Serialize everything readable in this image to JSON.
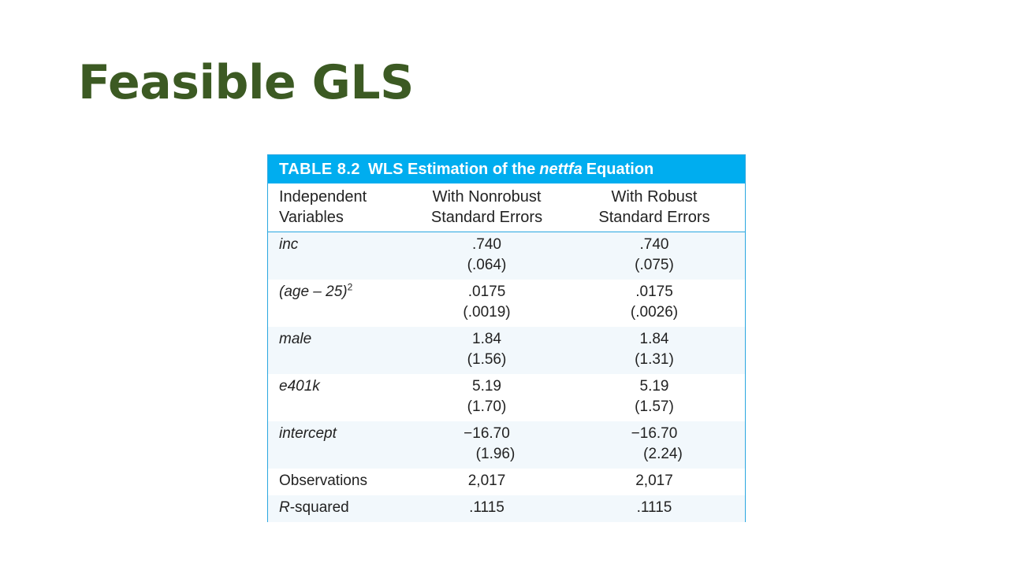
{
  "slide": {
    "title": "Feasible GLS"
  },
  "table": {
    "banner_number": "TABLE 8.2",
    "banner_prefix": "WLS Estimation of the",
    "banner_italic": "nettfa",
    "banner_suffix": "Equation",
    "headers": {
      "col1_line1": "Independent",
      "col1_line2": "Variables",
      "col2_line1": "With Nonrobust",
      "col2_line2": "Standard Errors",
      "col3_line1": "With Robust",
      "col3_line2": "Standard Errors"
    },
    "rows": [
      {
        "var": "inc",
        "nonrobust_coef": ".740",
        "nonrobust_se": "(.064)",
        "robust_coef": ".740",
        "robust_se": "(.075)"
      },
      {
        "var_main": "(age – 25)",
        "var_sup": "2",
        "nonrobust_coef": ".0175",
        "nonrobust_se": "(.0019)",
        "robust_coef": ".0175",
        "robust_se": "(.0026)"
      },
      {
        "var": "male",
        "nonrobust_coef": "1.84",
        "nonrobust_se": "(1.56)",
        "robust_coef": "1.84",
        "robust_se": "(1.31)"
      },
      {
        "var": "e401k",
        "nonrobust_coef": "5.19",
        "nonrobust_se": "(1.70)",
        "robust_coef": "5.19",
        "robust_se": "(1.57)"
      },
      {
        "var": "intercept",
        "nonrobust_coef": "−16.70",
        "nonrobust_se": "(1.96)",
        "robust_coef": "−16.70",
        "robust_se": "(2.24)"
      }
    ],
    "observations": {
      "label": "Observations",
      "nonrobust": "2,017",
      "robust": "2,017"
    },
    "rsquared": {
      "label_italic": "R",
      "label_rest": "-squared",
      "nonrobust": ".1115",
      "robust": ".1115"
    }
  }
}
